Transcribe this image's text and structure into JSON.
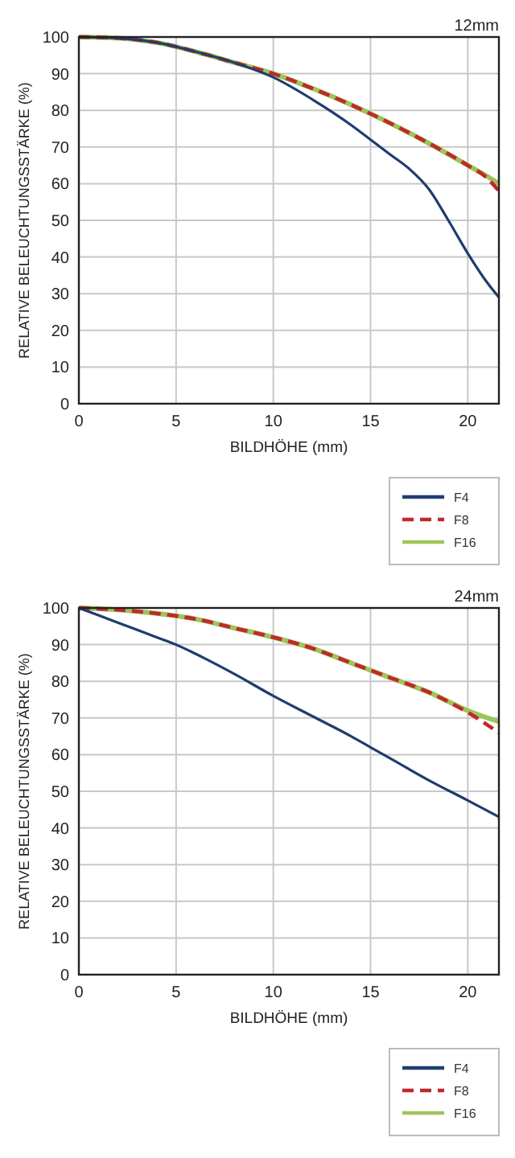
{
  "chart_data": [
    {
      "type": "line",
      "title": "12mm",
      "xlabel": "BILDHÖHE (mm)",
      "ylabel": "RELATIVE BELEUCHTUNGSSTÄRKE (%)",
      "xlim": [
        0,
        21.6
      ],
      "ylim": [
        0,
        100
      ],
      "xticks": [
        0,
        5,
        10,
        15,
        20
      ],
      "yticks": [
        0,
        10,
        20,
        30,
        40,
        50,
        60,
        70,
        80,
        90,
        100
      ],
      "grid": true,
      "legend": "bottom right",
      "marker": "none",
      "series": [
        {
          "name": "F4",
          "color": "#1f3d6e",
          "line_style": "solid",
          "x": [
            0,
            2,
            4,
            6,
            8,
            10,
            12,
            14,
            15,
            16,
            17,
            18,
            19,
            20,
            21,
            21.6
          ],
          "values": [
            100,
            99.7,
            98.5,
            96,
            93,
            89,
            83,
            76,
            72,
            68,
            64,
            58.5,
            50,
            41,
            33,
            29
          ]
        },
        {
          "name": "F8",
          "color": "#c0282c",
          "line_style": "dashed",
          "x": [
            0,
            2,
            4,
            6,
            8,
            10,
            12,
            14,
            16,
            18,
            20,
            21,
            21.6
          ],
          "values": [
            100,
            99.7,
            98.5,
            96,
            93,
            90,
            86,
            81.5,
            76.5,
            71,
            65,
            61.5,
            58
          ]
        },
        {
          "name": "F16",
          "color": "#9dc55a",
          "line_style": "solid",
          "x": [
            0,
            2,
            4,
            6,
            8,
            10,
            12,
            14,
            16,
            18,
            20,
            21,
            21.6
          ],
          "values": [
            100,
            99.7,
            98.5,
            96,
            93,
            90,
            86,
            81.5,
            76.5,
            71,
            65,
            62,
            60
          ]
        }
      ]
    },
    {
      "type": "line",
      "title": "24mm",
      "xlabel": "BILDHÖHE (mm)",
      "ylabel": "RELATIVE BELEUCHTUNGSSTÄRKE (%)",
      "xlim": [
        0,
        21.6
      ],
      "ylim": [
        0,
        100
      ],
      "xticks": [
        0,
        5,
        10,
        15,
        20
      ],
      "yticks": [
        0,
        10,
        20,
        30,
        40,
        50,
        60,
        70,
        80,
        90,
        100
      ],
      "grid": true,
      "legend": "bottom right",
      "marker": "none",
      "series": [
        {
          "name": "F4",
          "color": "#1f3d6e",
          "line_style": "solid",
          "x": [
            0,
            1,
            2,
            4,
            5,
            6,
            8,
            10,
            12,
            14,
            15,
            16,
            18,
            20,
            21.6
          ],
          "values": [
            100,
            98,
            96,
            92,
            90,
            87.5,
            82,
            76,
            70.5,
            65,
            62,
            59,
            53,
            47.5,
            43
          ]
        },
        {
          "name": "F8",
          "color": "#c0282c",
          "line_style": "dashed",
          "x": [
            0,
            2,
            4,
            6,
            8,
            10,
            12,
            14,
            16,
            18,
            20,
            21.6
          ],
          "values": [
            100,
            99.5,
            98.5,
            97,
            94.5,
            92,
            89,
            85,
            81,
            77,
            71.5,
            66
          ]
        },
        {
          "name": "F16",
          "color": "#9dc55a",
          "line_style": "solid",
          "x": [
            0,
            2,
            4,
            6,
            8,
            10,
            12,
            14,
            16,
            18,
            20,
            21.6
          ],
          "values": [
            100,
            99.5,
            98.5,
            97,
            94.5,
            92,
            89,
            85,
            81,
            77,
            72,
            69
          ]
        }
      ]
    }
  ]
}
